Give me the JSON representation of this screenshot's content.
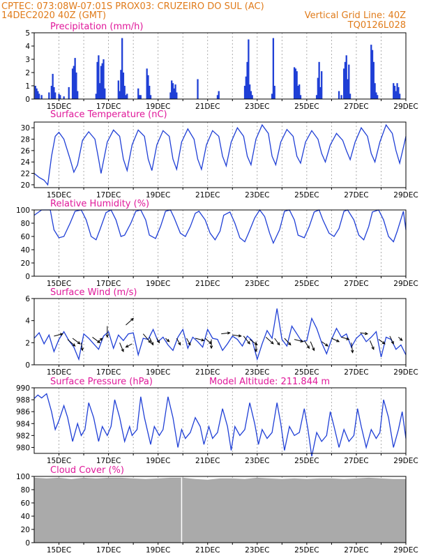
{
  "header": {
    "line1_left": "CPTEC:   073:08W-07:01S   PROX03: CRUZEIRO DO SUL (AC)",
    "line2_left": "14DEC2020 40Z (GMT)",
    "line2_right": "Vertical Grid Line: 40Z",
    "line3_right": "TQ0126L028"
  },
  "colors": {
    "header": "#e07b1a",
    "panel_title": "#e0189a",
    "series": "#1f3fd6",
    "cloud": "#aaaaaa",
    "wind_arrow": "#000000"
  },
  "x_axis": {
    "range_days": [
      14.0,
      29.0
    ],
    "tick_labels": [
      "15DEC",
      "17DEC",
      "19DEC",
      "21DEC",
      "23DEC",
      "25DEC",
      "27DEC",
      "29DEC"
    ],
    "tick_days": [
      15,
      17,
      19,
      21,
      23,
      25,
      27,
      29
    ],
    "grid_days": [
      15,
      16,
      17,
      18,
      19,
      20,
      21,
      22,
      23,
      24,
      25,
      26,
      27,
      28
    ]
  },
  "chart_data": [
    {
      "id": "precip",
      "type": "bar",
      "title": "Precipitation (mm/h)",
      "ylim": [
        0,
        5
      ],
      "yticks": [
        0,
        1,
        2,
        3,
        4,
        5
      ],
      "x": [
        14.05,
        14.1,
        14.15,
        14.2,
        14.3,
        14.6,
        14.7,
        14.75,
        14.8,
        14.85,
        15.0,
        15.05,
        15.2,
        15.4,
        15.55,
        15.6,
        15.65,
        15.7,
        15.75,
        16.5,
        16.55,
        16.6,
        16.65,
        16.7,
        16.75,
        16.8,
        16.85,
        17.4,
        17.45,
        17.5,
        17.55,
        17.6,
        17.65,
        17.7,
        17.75,
        18.2,
        18.25,
        18.3,
        18.55,
        18.6,
        18.65,
        18.7,
        19.5,
        19.55,
        19.6,
        19.65,
        19.7,
        19.75,
        20.6,
        21.4,
        21.45,
        22.5,
        22.55,
        22.6,
        22.65,
        22.7,
        22.75,
        22.8,
        23.6,
        23.65,
        23.7,
        24.5,
        24.55,
        24.6,
        24.65,
        24.7,
        24.75,
        25.4,
        25.45,
        25.5,
        25.55,
        25.6,
        26.3,
        26.4,
        26.5,
        26.55,
        26.6,
        26.65,
        26.7,
        26.75,
        27.6,
        27.65,
        27.7,
        27.75,
        27.8,
        27.85,
        28.5,
        28.55,
        28.6,
        28.65,
        28.7,
        28.75
      ],
      "values": [
        1.0,
        0.8,
        0.6,
        0.4,
        0.3,
        0.5,
        1.0,
        1.9,
        0.9,
        0.5,
        0.4,
        0.3,
        0.2,
        0.9,
        2.3,
        2.5,
        3.1,
        2.0,
        0.6,
        0.4,
        2.8,
        3.3,
        1.2,
        2.5,
        2.7,
        3.0,
        0.8,
        1.4,
        0.6,
        2.2,
        4.6,
        2.0,
        1.0,
        0.3,
        0.4,
        0.8,
        0.3,
        0.3,
        2.3,
        1.8,
        1.0,
        0.3,
        0.5,
        1.4,
        1.2,
        0.8,
        1.1,
        0.5,
        1.5,
        0.3,
        0.6,
        1.0,
        1.7,
        2.8,
        4.5,
        1.1,
        0.6,
        0.3,
        0.4,
        4.6,
        1.0,
        2.4,
        2.3,
        2.1,
        1.0,
        1.1,
        0.3,
        0.3,
        1.6,
        2.8,
        0.9,
        2.1,
        0.6,
        0.3,
        2.3,
        2.8,
        3.3,
        1.5,
        2.6,
        0.4,
        4.1,
        3.7,
        2.8,
        1.2,
        0.5,
        0.3,
        1.2,
        1.0,
        0.6,
        1.2,
        0.9,
        0.4
      ]
    },
    {
      "id": "temp",
      "type": "line",
      "title": "Surface Temperature (nC)",
      "ylim": [
        19.5,
        31
      ],
      "yticks": [
        20,
        22,
        24,
        26,
        28,
        30
      ],
      "x": [
        14.0,
        14.2,
        14.4,
        14.55,
        14.7,
        14.85,
        15.0,
        15.2,
        15.45,
        15.6,
        15.75,
        15.95,
        16.2,
        16.45,
        16.6,
        16.7,
        16.95,
        17.2,
        17.45,
        17.6,
        17.75,
        17.95,
        18.2,
        18.45,
        18.6,
        18.75,
        18.95,
        19.2,
        19.45,
        19.6,
        19.75,
        19.95,
        20.2,
        20.45,
        20.6,
        20.75,
        20.95,
        21.2,
        21.45,
        21.6,
        21.75,
        21.95,
        22.2,
        22.45,
        22.6,
        22.75,
        22.95,
        23.2,
        23.45,
        23.6,
        23.75,
        23.95,
        24.2,
        24.45,
        24.6,
        24.75,
        24.95,
        25.2,
        25.45,
        25.6,
        25.75,
        25.95,
        26.2,
        26.45,
        26.6,
        26.75,
        26.95,
        27.2,
        27.45,
        27.6,
        27.75,
        27.95,
        28.2,
        28.45,
        28.6,
        28.75,
        28.95,
        29.0
      ],
      "values": [
        22.0,
        21.3,
        20.8,
        20.0,
        25.0,
        28.5,
        29.2,
        28.0,
        24.5,
        22.2,
        23.5,
        27.8,
        29.3,
        28.0,
        24.5,
        22.0,
        27.5,
        29.6,
        28.5,
        24.5,
        22.5,
        27.0,
        29.6,
        28.5,
        24.5,
        22.5,
        27.0,
        29.5,
        28.5,
        24.5,
        22.7,
        27.5,
        29.8,
        28.0,
        24.5,
        22.7,
        27.0,
        29.5,
        28.5,
        25.0,
        23.3,
        27.5,
        30.0,
        28.5,
        25.0,
        23.5,
        28.0,
        30.5,
        29.0,
        25.0,
        23.5,
        27.5,
        29.7,
        28.5,
        25.0,
        23.8,
        27.5,
        29.5,
        28.0,
        25.5,
        24.0,
        27.0,
        29.0,
        27.8,
        26.0,
        24.4,
        27.5,
        30.0,
        28.5,
        25.5,
        24.0,
        27.5,
        30.5,
        29.0,
        26.0,
        23.8,
        27.5,
        28.5
      ]
    },
    {
      "id": "rh",
      "type": "line",
      "title": "Relative Humidity (%)",
      "ylim": [
        0,
        100
      ],
      "yticks": [
        0,
        20,
        40,
        60,
        80,
        100
      ],
      "x": [
        14.0,
        14.3,
        14.5,
        14.65,
        14.8,
        15.0,
        15.2,
        15.45,
        15.65,
        15.9,
        16.1,
        16.3,
        16.5,
        16.65,
        16.9,
        17.1,
        17.3,
        17.5,
        17.65,
        17.9,
        18.1,
        18.3,
        18.5,
        18.65,
        18.9,
        19.1,
        19.3,
        19.5,
        19.65,
        19.9,
        20.1,
        20.3,
        20.5,
        20.65,
        20.9,
        21.1,
        21.3,
        21.5,
        21.65,
        21.9,
        22.1,
        22.3,
        22.5,
        22.65,
        22.9,
        23.1,
        23.3,
        23.5,
        23.65,
        23.9,
        24.1,
        24.3,
        24.5,
        24.65,
        24.9,
        25.1,
        25.3,
        25.5,
        25.65,
        25.9,
        26.1,
        26.3,
        26.5,
        26.65,
        26.9,
        27.1,
        27.3,
        27.5,
        27.65,
        27.9,
        28.1,
        28.3,
        28.5,
        28.65,
        28.9,
        29.0
      ],
      "values": [
        92,
        100,
        100,
        100,
        70,
        58,
        60,
        80,
        98,
        100,
        85,
        60,
        55,
        70,
        96,
        100,
        85,
        60,
        62,
        80,
        98,
        100,
        85,
        62,
        57,
        75,
        98,
        100,
        88,
        65,
        60,
        75,
        95,
        98,
        85,
        65,
        55,
        68,
        92,
        97,
        80,
        58,
        52,
        65,
        88,
        100,
        90,
        65,
        50,
        70,
        98,
        100,
        85,
        62,
        58,
        75,
        97,
        100,
        85,
        65,
        60,
        72,
        98,
        100,
        85,
        62,
        55,
        75,
        97,
        100,
        85,
        60,
        52,
        68,
        98,
        70
      ]
    },
    {
      "id": "wind",
      "type": "line",
      "title": "Surface Wind (m/s)",
      "ylim": [
        0,
        6
      ],
      "yticks": [
        0,
        2,
        4,
        6
      ],
      "x": [
        14.0,
        14.2,
        14.4,
        14.6,
        14.8,
        15.0,
        15.2,
        15.4,
        15.6,
        15.8,
        16.0,
        16.2,
        16.4,
        16.6,
        16.8,
        17.0,
        17.2,
        17.4,
        17.6,
        17.8,
        18.0,
        18.2,
        18.4,
        18.6,
        18.8,
        19.0,
        19.2,
        19.4,
        19.6,
        19.8,
        20.0,
        20.2,
        20.4,
        20.6,
        20.8,
        21.0,
        21.2,
        21.4,
        21.6,
        21.8,
        22.0,
        22.2,
        22.4,
        22.6,
        22.8,
        23.0,
        23.2,
        23.4,
        23.6,
        23.8,
        24.0,
        24.2,
        24.4,
        24.6,
        24.8,
        25.0,
        25.2,
        25.4,
        25.6,
        25.8,
        26.0,
        26.2,
        26.4,
        26.6,
        26.8,
        27.0,
        27.2,
        27.4,
        27.6,
        27.8,
        28.0,
        28.2,
        28.4,
        28.6,
        28.8,
        29.0
      ],
      "values": [
        2.4,
        2.9,
        1.9,
        2.7,
        1.2,
        2.3,
        3.0,
        2.2,
        1.6,
        0.5,
        2.8,
        2.4,
        1.9,
        1.4,
        2.6,
        3.0,
        1.5,
        2.7,
        2.2,
        2.8,
        2.9,
        0.9,
        2.4,
        2.3,
        3.2,
        2.1,
        2.5,
        1.8,
        1.3,
        2.5,
        3.2,
        1.5,
        2.5,
        2.1,
        1.6,
        3.2,
        2.4,
        2.3,
        1.3,
        1.9,
        2.6,
        2.3,
        1.7,
        2.6,
        2.2,
        0.5,
        1.9,
        3.1,
        2.4,
        5.1,
        2.3,
        1.7,
        3.5,
        2.8,
        2.1,
        2.2,
        4.2,
        3.3,
        2.0,
        1.0,
        2.3,
        3.3,
        2.5,
        2.8,
        1.6,
        2.4,
        2.8,
        2.1,
        2.5,
        3.0,
        0.7,
        2.5,
        2.3,
        1.4,
        1.8,
        0.9
      ],
      "arrows": [
        {
          "x": 14.8,
          "y": 2.6,
          "dx": 0.35,
          "dy": 0.2
        },
        {
          "x": 15.35,
          "y": 2.3,
          "dx": 0.3,
          "dy": -0.6
        },
        {
          "x": 15.55,
          "y": 2.4,
          "dx": 0.3,
          "dy": -0.5
        },
        {
          "x": 15.9,
          "y": 2.0,
          "dx": 0.05,
          "dy": -0.7
        },
        {
          "x": 16.35,
          "y": 2.5,
          "dx": 0.3,
          "dy": -0.5
        },
        {
          "x": 16.55,
          "y": 2.0,
          "dx": 0.2,
          "dy": 0.4
        },
        {
          "x": 16.95,
          "y": 3.5,
          "dx": 0.0,
          "dy": -1.0
        },
        {
          "x": 17.45,
          "y": 2.0,
          "dx": 0.15,
          "dy": -0.8
        },
        {
          "x": 17.7,
          "y": 3.6,
          "dx": 0.3,
          "dy": 0.6
        },
        {
          "x": 17.95,
          "y": 1.9,
          "dx": -0.25,
          "dy": -0.3
        },
        {
          "x": 18.4,
          "y": 2.8,
          "dx": 0.3,
          "dy": -0.8
        },
        {
          "x": 18.65,
          "y": 2.5,
          "dx": 0.15,
          "dy": -0.7
        },
        {
          "x": 18.95,
          "y": 2.4,
          "dx": 0.1,
          "dy": -0.4
        },
        {
          "x": 19.3,
          "y": 2.4,
          "dx": 0.15,
          "dy": -0.3
        },
        {
          "x": 19.75,
          "y": 2.4,
          "dx": 0.15,
          "dy": -0.6
        },
        {
          "x": 20.15,
          "y": 2.4,
          "dx": 0.15,
          "dy": -0.6
        },
        {
          "x": 20.5,
          "y": 2.4,
          "dx": 0.35,
          "dy": -0.2
        },
        {
          "x": 20.9,
          "y": 2.4,
          "dx": 0.25,
          "dy": -0.5
        },
        {
          "x": 21.15,
          "y": 2.3,
          "dx": 0.0,
          "dy": -0.8
        },
        {
          "x": 21.55,
          "y": 2.8,
          "dx": 0.35,
          "dy": 0.1
        },
        {
          "x": 22.0,
          "y": 2.7,
          "dx": 0.35,
          "dy": -0.1
        },
        {
          "x": 22.45,
          "y": 2.6,
          "dx": 0.25,
          "dy": -0.7
        },
        {
          "x": 22.7,
          "y": 2.3,
          "dx": 0.3,
          "dy": -0.5
        },
        {
          "x": 22.95,
          "y": 2.1,
          "dx": 0.0,
          "dy": -0.9
        },
        {
          "x": 23.35,
          "y": 2.5,
          "dx": 0.3,
          "dy": -0.6
        },
        {
          "x": 23.7,
          "y": 2.4,
          "dx": 0.2,
          "dy": -0.6
        },
        {
          "x": 24.1,
          "y": 2.4,
          "dx": 0.25,
          "dy": -0.6
        },
        {
          "x": 24.5,
          "y": 2.3,
          "dx": 0.35,
          "dy": -0.2
        },
        {
          "x": 24.9,
          "y": 2.2,
          "dx": 0.2,
          "dy": -0.7
        },
        {
          "x": 25.15,
          "y": 2.1,
          "dx": 0.15,
          "dy": -0.8
        },
        {
          "x": 25.6,
          "y": 2.1,
          "dx": 0.25,
          "dy": -0.4
        },
        {
          "x": 26.0,
          "y": 2.4,
          "dx": 0.3,
          "dy": -0.3
        },
        {
          "x": 26.4,
          "y": 2.5,
          "dx": 0.3,
          "dy": -0.2
        },
        {
          "x": 26.8,
          "y": 2.0,
          "dx": 0.05,
          "dy": -0.9
        },
        {
          "x": 27.15,
          "y": 2.9,
          "dx": 0.3,
          "dy": -0.1
        },
        {
          "x": 27.55,
          "y": 2.2,
          "dx": 0.15,
          "dy": -0.8
        },
        {
          "x": 27.9,
          "y": 2.3,
          "dx": 0.25,
          "dy": -0.4
        },
        {
          "x": 28.35,
          "y": 2.6,
          "dx": 0.15,
          "dy": -0.7
        },
        {
          "x": 28.7,
          "y": 2.5,
          "dx": 0.15,
          "dy": -0.3
        }
      ]
    },
    {
      "id": "pressure",
      "type": "line",
      "title": "Surface Pressure (hPa)",
      "ylim": [
        979,
        990
      ],
      "yticks": [
        980,
        982,
        984,
        986,
        988,
        990
      ],
      "x": [
        14.0,
        14.15,
        14.3,
        14.5,
        14.7,
        14.85,
        15.0,
        15.2,
        15.35,
        15.55,
        15.75,
        15.9,
        16.05,
        16.2,
        16.4,
        16.6,
        16.75,
        16.95,
        17.1,
        17.25,
        17.45,
        17.65,
        17.85,
        17.95,
        18.15,
        18.3,
        18.45,
        18.7,
        18.85,
        19.05,
        19.2,
        19.4,
        19.6,
        19.8,
        19.95,
        20.1,
        20.3,
        20.5,
        20.7,
        20.85,
        21.05,
        21.2,
        21.4,
        21.6,
        21.8,
        21.95,
        22.1,
        22.3,
        22.5,
        22.7,
        22.9,
        23.05,
        23.2,
        23.4,
        23.6,
        23.8,
        23.95,
        24.1,
        24.3,
        24.5,
        24.7,
        24.9,
        25.05,
        25.2,
        25.4,
        25.6,
        25.8,
        25.95,
        26.1,
        26.3,
        26.5,
        26.7,
        26.9,
        27.05,
        27.2,
        27.4,
        27.6,
        27.8,
        27.95,
        28.1,
        28.3,
        28.5,
        28.7,
        28.85,
        29.0
      ],
      "values": [
        988.2,
        988.8,
        988.3,
        989.0,
        986.0,
        983.0,
        984.5,
        987.0,
        985.0,
        981.0,
        984.0,
        982.0,
        983.0,
        987.5,
        985.0,
        981.0,
        983.5,
        982.0,
        983.5,
        988.0,
        985.0,
        981.0,
        983.5,
        982.0,
        983.0,
        988.5,
        985.0,
        980.5,
        983.5,
        982.0,
        983.0,
        988.5,
        985.0,
        980.0,
        983.0,
        981.5,
        982.5,
        985.0,
        983.5,
        980.5,
        983.5,
        981.5,
        982.5,
        986.5,
        983.5,
        979.5,
        983.5,
        982.0,
        983.0,
        987.5,
        984.0,
        980.5,
        983.0,
        981.5,
        982.5,
        987.5,
        984.0,
        979.5,
        983.5,
        982.0,
        982.5,
        986.5,
        983.0,
        978.5,
        982.5,
        981.0,
        982.0,
        986.0,
        983.5,
        980.0,
        983.0,
        981.0,
        982.0,
        986.5,
        983.5,
        980.0,
        983.0,
        981.5,
        982.5,
        988.0,
        985.0,
        980.0,
        983.0,
        986.0,
        981.5
      ]
    },
    {
      "id": "cloud",
      "type": "area",
      "title": "Cloud Cover (%)",
      "ylim": [
        0,
        100
      ],
      "yticks": [
        0,
        20,
        40,
        60,
        80,
        100
      ],
      "x": [
        14.0,
        14.5,
        15.0,
        15.5,
        16.0,
        16.5,
        17.0,
        17.5,
        18.0,
        18.5,
        19.0,
        19.5,
        19.9,
        20.0,
        20.5,
        21.0,
        21.5,
        22.0,
        22.5,
        23.0,
        23.5,
        24.0,
        24.5,
        25.0,
        25.5,
        26.0,
        26.5,
        27.0,
        27.5,
        28.0,
        28.5,
        29.0
      ],
      "values": [
        98,
        97,
        98,
        96,
        98,
        97,
        98,
        98,
        97,
        96,
        97,
        98,
        98,
        98,
        96,
        95,
        97,
        97,
        96,
        98,
        97,
        96,
        97,
        96,
        97,
        97,
        96,
        97,
        98,
        97,
        96,
        96
      ],
      "gap_x": 19.95
    }
  ],
  "panel_extra": {
    "pressure_altitude": "Model Altitude: 211.844 m"
  }
}
